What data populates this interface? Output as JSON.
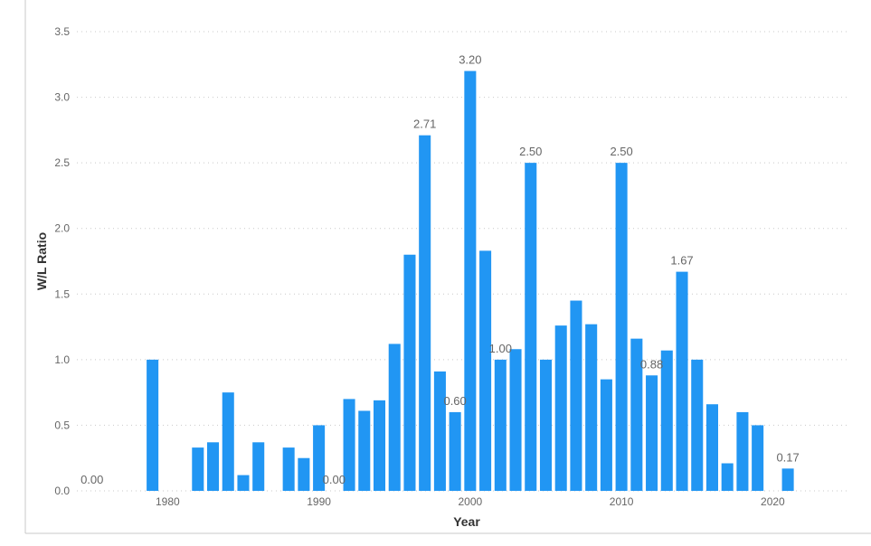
{
  "chart_data": {
    "type": "bar",
    "xlabel": "Year",
    "ylabel": "W/L Ratio",
    "xlim": [
      1974,
      2025
    ],
    "ylim": [
      0,
      3.5
    ],
    "y_ticks": [
      "0.0",
      "0.5",
      "1.0",
      "1.5",
      "2.0",
      "2.5",
      "3.0",
      "3.5"
    ],
    "x_ticks": [
      "1980",
      "1990",
      "2000",
      "2010",
      "2020"
    ],
    "grid": "horizontal dotted",
    "bar_color": "#2196F3",
    "data": [
      {
        "x": 1979,
        "y": 1.0
      },
      {
        "x": 1982,
        "y": 0.33
      },
      {
        "x": 1983,
        "y": 0.37
      },
      {
        "x": 1984,
        "y": 0.75
      },
      {
        "x": 1985,
        "y": 0.12
      },
      {
        "x": 1986,
        "y": 0.37
      },
      {
        "x": 1988,
        "y": 0.33
      },
      {
        "x": 1989,
        "y": 0.25
      },
      {
        "x": 1990,
        "y": 0.5
      },
      {
        "x": 1992,
        "y": 0.7
      },
      {
        "x": 1993,
        "y": 0.61
      },
      {
        "x": 1994,
        "y": 0.69
      },
      {
        "x": 1995,
        "y": 1.12
      },
      {
        "x": 1996,
        "y": 1.8
      },
      {
        "x": 1997,
        "y": 2.71
      },
      {
        "x": 1998,
        "y": 0.91
      },
      {
        "x": 1999,
        "y": 0.6
      },
      {
        "x": 2000,
        "y": 3.2
      },
      {
        "x": 2001,
        "y": 1.83
      },
      {
        "x": 2002,
        "y": 1.0
      },
      {
        "x": 2003,
        "y": 1.08
      },
      {
        "x": 2004,
        "y": 2.5
      },
      {
        "x": 2005,
        "y": 1.0
      },
      {
        "x": 2006,
        "y": 1.26
      },
      {
        "x": 2007,
        "y": 1.45
      },
      {
        "x": 2008,
        "y": 1.27
      },
      {
        "x": 2009,
        "y": 0.85
      },
      {
        "x": 2010,
        "y": 2.5
      },
      {
        "x": 2011,
        "y": 1.16
      },
      {
        "x": 2012,
        "y": 0.88
      },
      {
        "x": 2013,
        "y": 1.07
      },
      {
        "x": 2014,
        "y": 1.67
      },
      {
        "x": 2015,
        "y": 1.0
      },
      {
        "x": 2016,
        "y": 0.66
      },
      {
        "x": 2017,
        "y": 0.21
      },
      {
        "x": 2018,
        "y": 0.6
      },
      {
        "x": 2019,
        "y": 0.5
      },
      {
        "x": 2021,
        "y": 0.17
      }
    ],
    "data_labels": [
      {
        "x": 1975,
        "y": 0.0,
        "text": "0.00"
      },
      {
        "x": 1991,
        "y": 0.0,
        "text": "0.00"
      },
      {
        "x": 1997,
        "y": 2.71,
        "text": "2.71"
      },
      {
        "x": 1999,
        "y": 0.6,
        "text": "0.60"
      },
      {
        "x": 2000,
        "y": 3.2,
        "text": "3.20"
      },
      {
        "x": 2002,
        "y": 1.0,
        "text": "1.00"
      },
      {
        "x": 2004,
        "y": 2.5,
        "text": "2.50"
      },
      {
        "x": 2010,
        "y": 2.5,
        "text": "2.50"
      },
      {
        "x": 2012,
        "y": 0.88,
        "text": "0.88"
      },
      {
        "x": 2014,
        "y": 1.67,
        "text": "1.67"
      },
      {
        "x": 2021,
        "y": 0.17,
        "text": "0.17"
      }
    ]
  }
}
